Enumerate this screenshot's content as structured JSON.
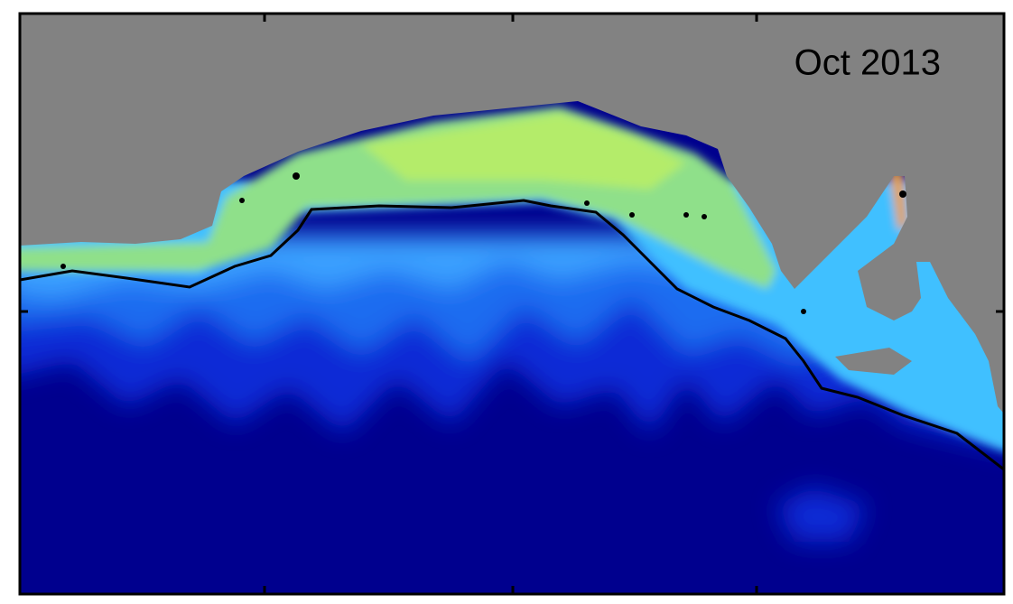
{
  "map": {
    "label": "Oct 2013"
  }
}
